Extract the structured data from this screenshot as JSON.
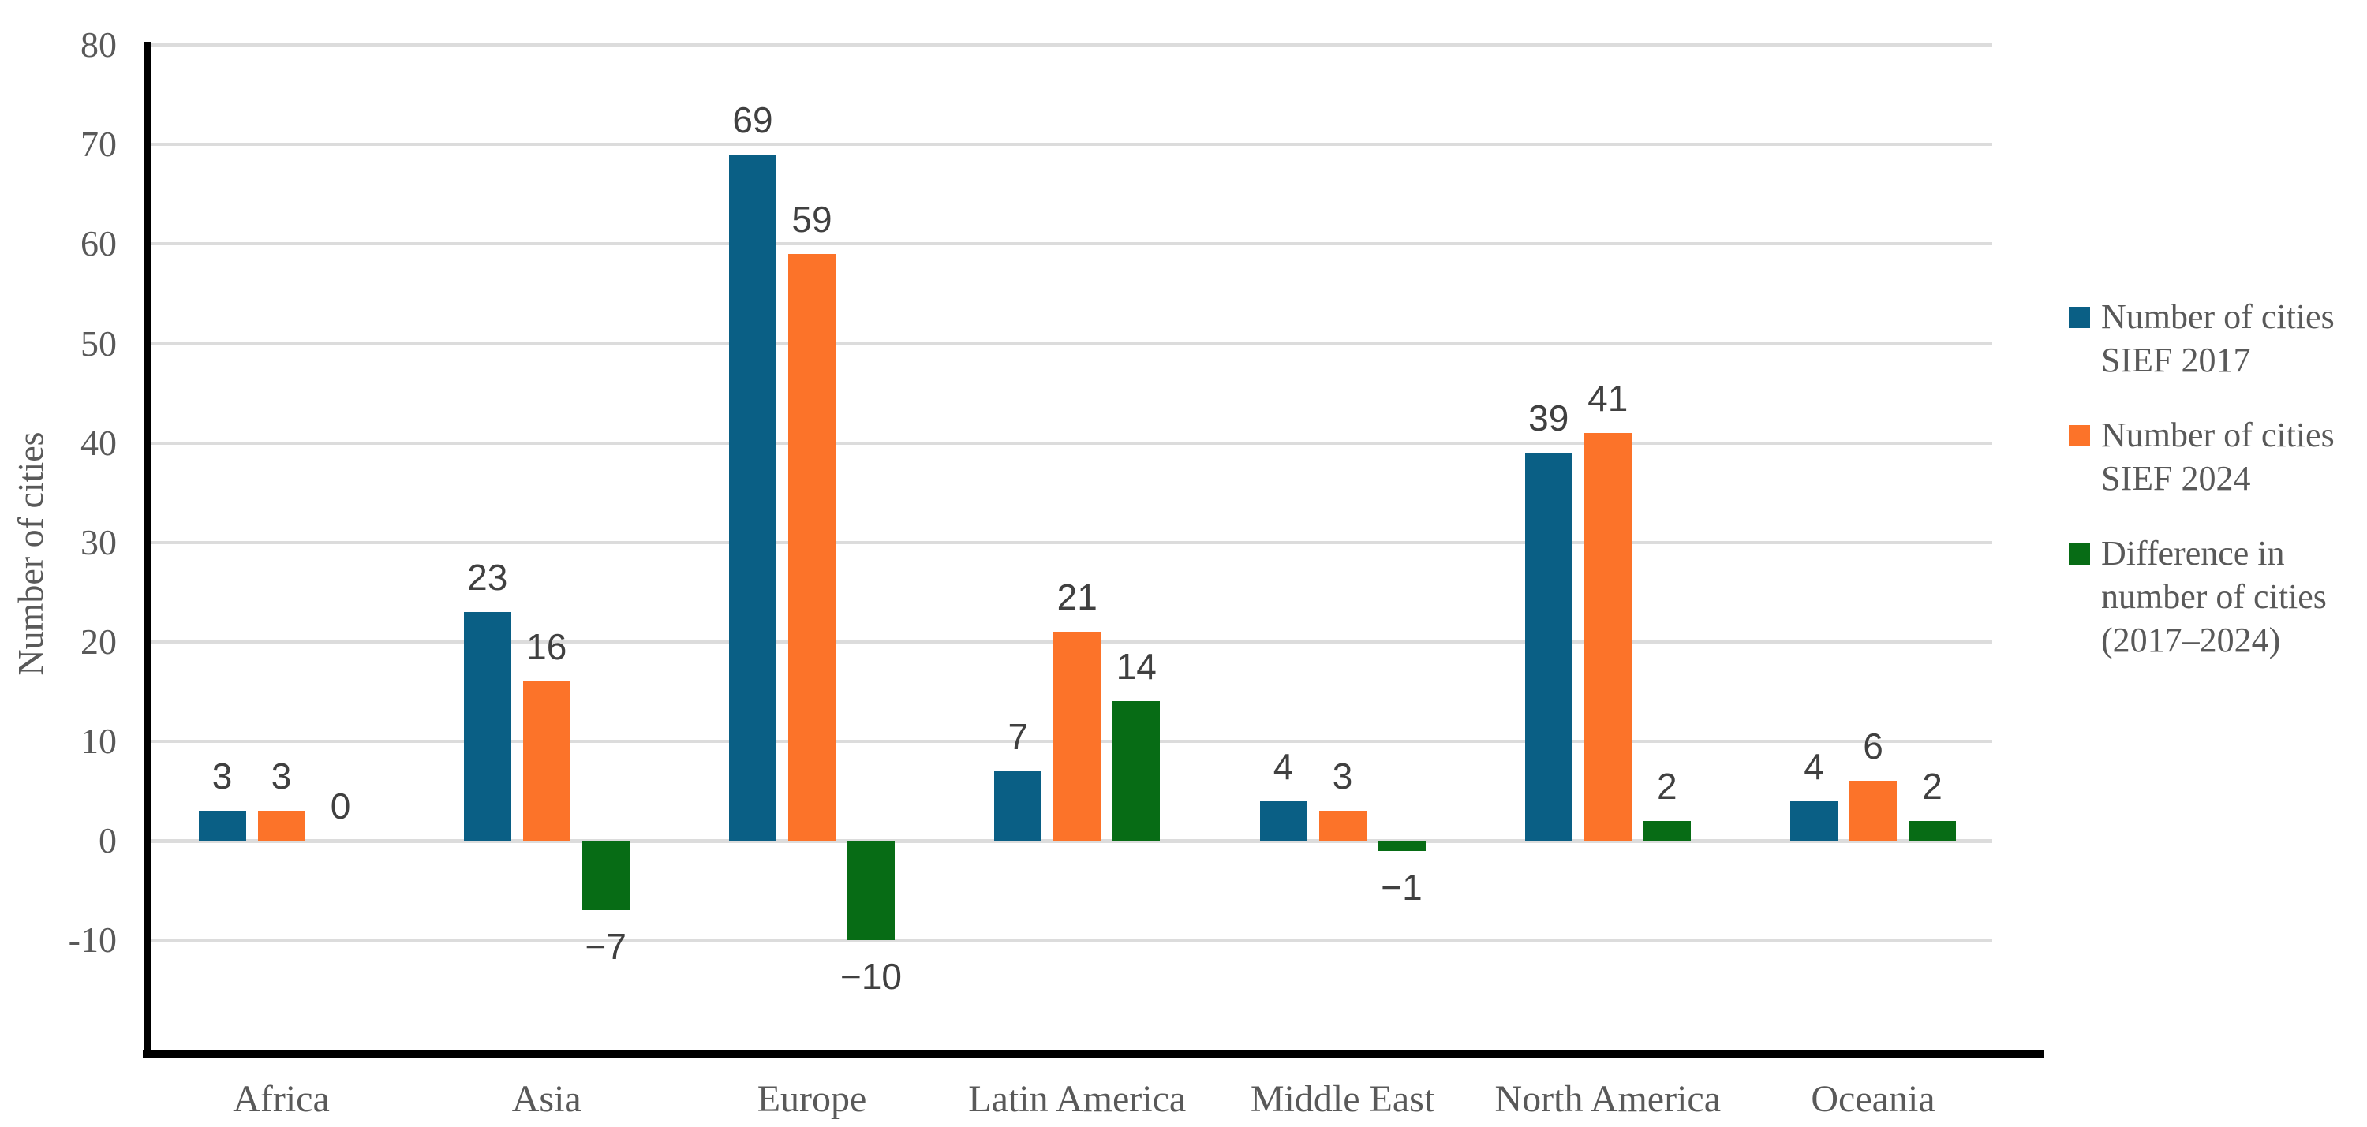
{
  "chart_data": {
    "type": "bar",
    "title": "",
    "ylabel": "Number of cities",
    "xlabel": "",
    "categories": [
      "Africa",
      "Asia",
      "Europe",
      "Latin America",
      "Middle East",
      "North America",
      "Oceania"
    ],
    "series": [
      {
        "name": "Number of cities SIEF 2017",
        "legend_lines": [
          "Number of cities",
          "SIEF 2017"
        ],
        "color": "#0A5F85",
        "values": [
          3,
          23,
          69,
          7,
          4,
          39,
          4
        ],
        "labels": [
          "3",
          "23",
          "69",
          "7",
          "4",
          "39",
          "4"
        ]
      },
      {
        "name": "Number of cities SIEF 2024",
        "legend_lines": [
          "Number of cities",
          "SIEF 2024"
        ],
        "color": "#FC7329",
        "values": [
          3,
          16,
          59,
          21,
          3,
          41,
          6
        ],
        "labels": [
          "3",
          "16",
          "59",
          "21",
          "3",
          "41",
          "6"
        ]
      },
      {
        "name": "Difference in number of cities (2017–2024)",
        "legend_lines": [
          "Difference in",
          "number of cities",
          "(2017–2024)"
        ],
        "color": "#076C15",
        "values": [
          0,
          -7,
          -10,
          14,
          -1,
          2,
          2
        ],
        "labels": [
          "0",
          "−7",
          "−10",
          "14",
          "−1",
          "2",
          "2"
        ]
      }
    ],
    "y_ticks": [
      {
        "label": "80",
        "value": 80
      },
      {
        "label": "70",
        "value": 70
      },
      {
        "label": "60",
        "value": 60
      },
      {
        "label": "50",
        "value": 50
      },
      {
        "label": "40",
        "value": 40
      },
      {
        "label": "30",
        "value": 30
      },
      {
        "label": "20",
        "value": 20
      },
      {
        "label": "10",
        "value": 10
      },
      {
        "label": "0",
        "value": 0
      },
      {
        "label": "-10",
        "value": -10
      }
    ],
    "ylim": [
      -21.5,
      80
    ],
    "grid": true,
    "legend_position": "right",
    "colors": {
      "axis_text": "#595959",
      "data_label": "#404040",
      "gridline": "#DCDCDC",
      "axis_line": "#000000",
      "background": "#FFFFFF"
    }
  }
}
